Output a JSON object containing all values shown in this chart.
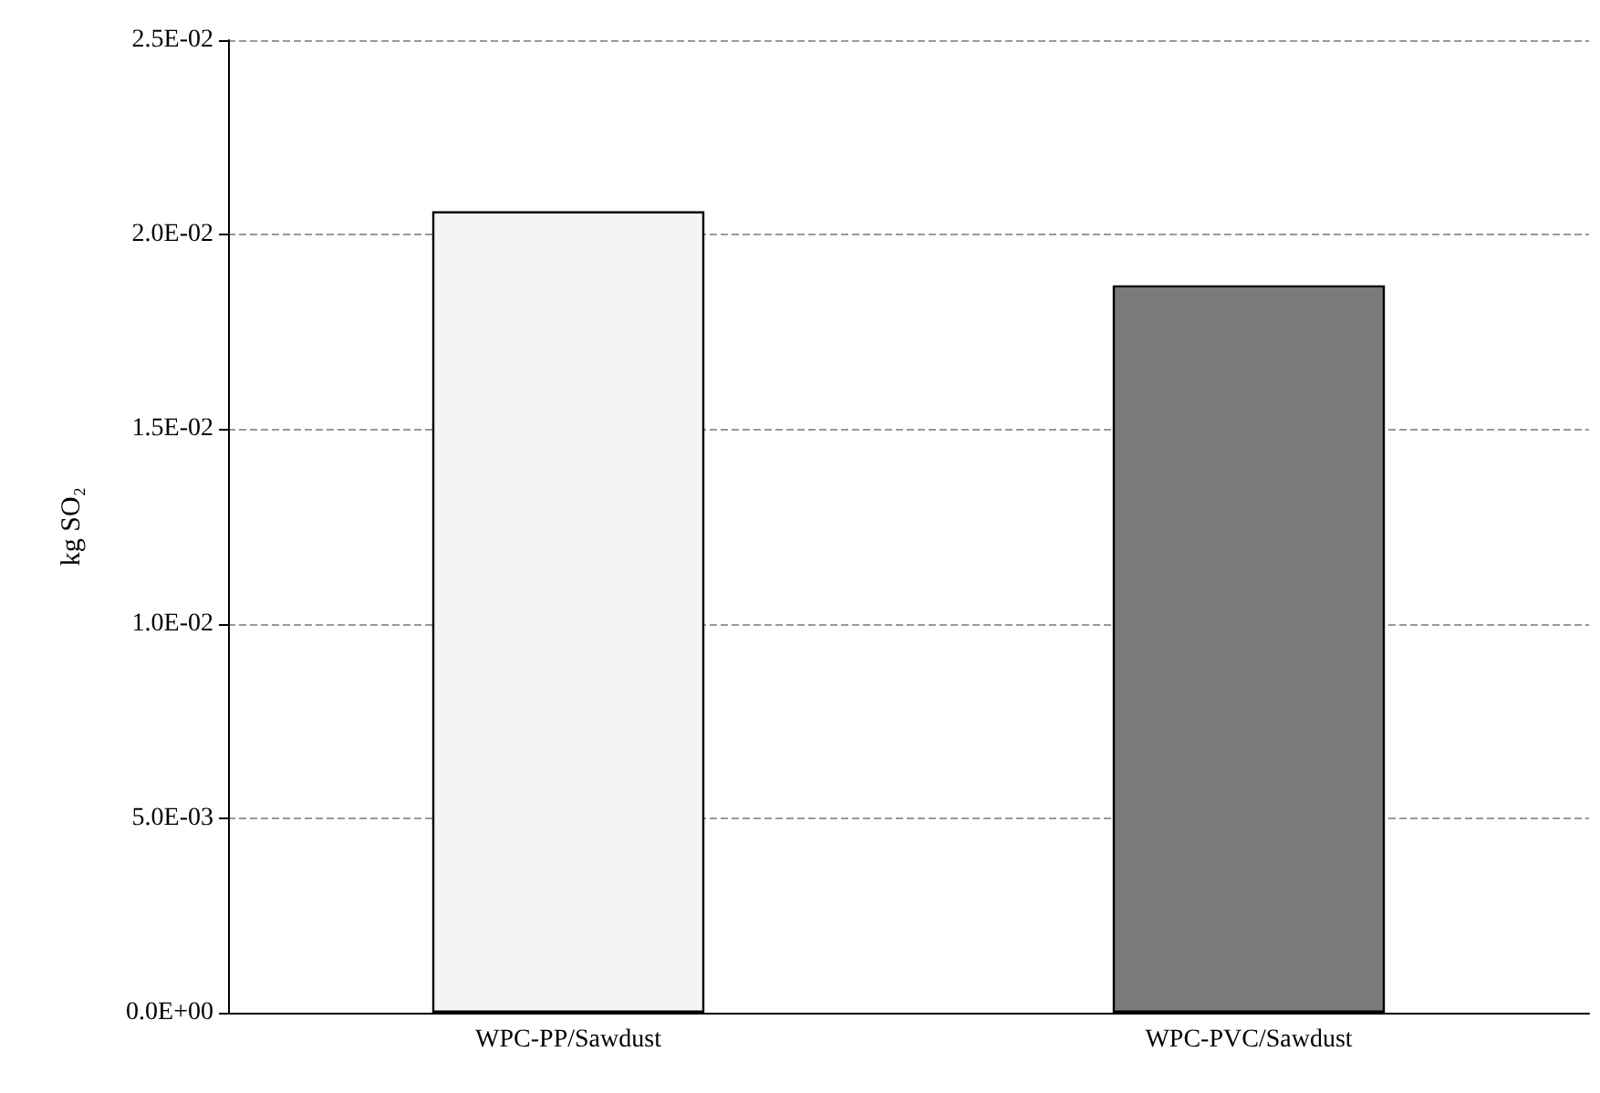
{
  "chart_data": {
    "type": "bar",
    "ylabel": "kg SO₂",
    "categories": [
      "WPC-PP/Sawdust",
      "WPC-PVC/Sawdust"
    ],
    "values": [
      0.0206,
      0.0187
    ],
    "colors": [
      "#f4f4f4",
      "#7a7a7a"
    ],
    "ylim": [
      0,
      0.025
    ],
    "yticks": [
      {
        "value": 0,
        "label": "0.0E+00"
      },
      {
        "value": 0.005,
        "label": "5.0E-03"
      },
      {
        "value": 0.01,
        "label": "1.0E-02"
      },
      {
        "value": 0.015,
        "label": "1.5E-02"
      },
      {
        "value": 0.02,
        "label": "2.0E-02"
      },
      {
        "value": 0.025,
        "label": "2.5E-02"
      }
    ],
    "grid": "y"
  }
}
